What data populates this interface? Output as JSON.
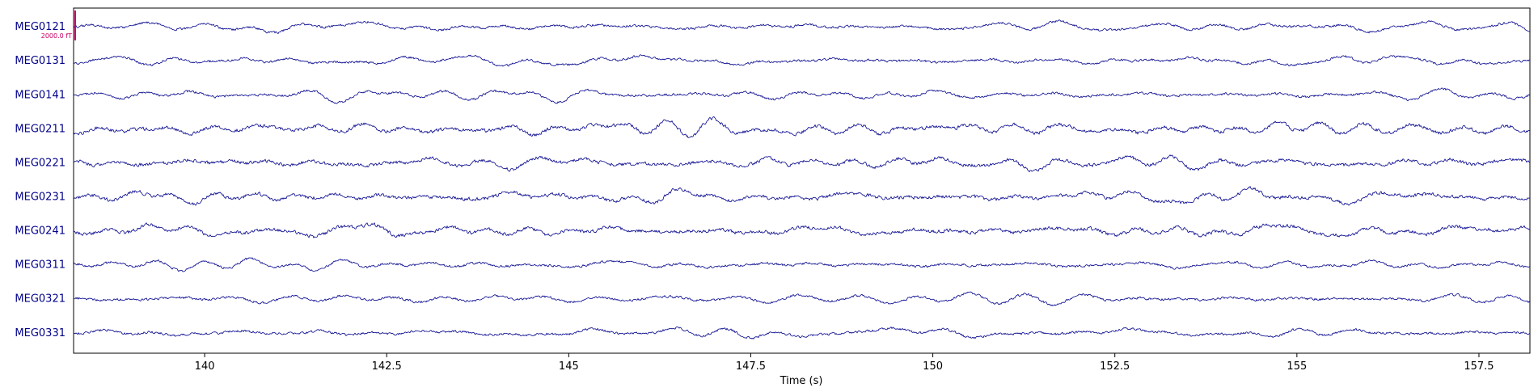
{
  "chart_data": {
    "type": "line",
    "title": "",
    "xlabel": "Time (s)",
    "ylabel": "",
    "xlim": [
      138.2,
      158.2
    ],
    "grid": false,
    "x_ticks": [
      140,
      142.5,
      145,
      147.5,
      150,
      152.5,
      155,
      157.5
    ],
    "x_tick_labels": [
      "140",
      "142.5",
      "145",
      "147.5",
      "150",
      "152.5",
      "155",
      "157.5"
    ],
    "channels": [
      "MEG0121",
      "MEG0131",
      "MEG0141",
      "MEG0211",
      "MEG0221",
      "MEG0231",
      "MEG0241",
      "MEG0311",
      "MEG0321",
      "MEG0331"
    ],
    "scale_bar": {
      "label": "2000.0 fT",
      "color": "#cc0066"
    },
    "colors": {
      "trace": "#00008b",
      "channel_label": "#00008b",
      "axis": "#000000"
    }
  }
}
